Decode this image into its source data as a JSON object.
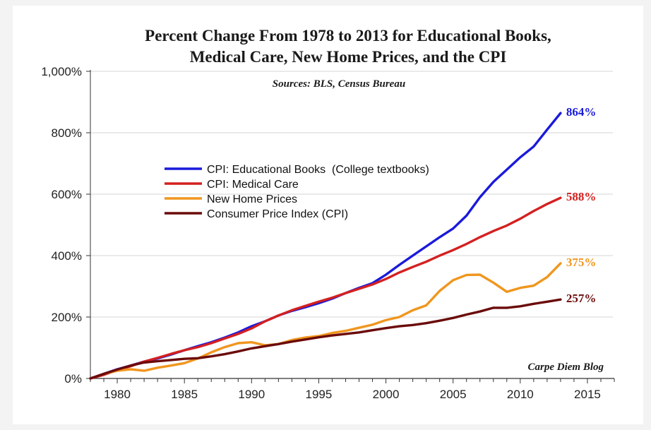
{
  "chart_data": {
    "type": "line",
    "title": [
      "Percent Change From 1978 to 2013 for Educational Books,",
      "Medical Care, New Home Prices, and the CPI"
    ],
    "subtitle": "Sources: BLS, Census Bureau",
    "credit": "Carpe Diem Blog",
    "xlabel": "",
    "ylabel": "",
    "xlim": [
      1978,
      2017
    ],
    "ylim": [
      0,
      1000
    ],
    "x_ticks": [
      1980,
      1985,
      1990,
      1995,
      2000,
      2005,
      2010,
      2015
    ],
    "y_ticks": [
      0,
      200,
      400,
      600,
      800,
      1000
    ],
    "y_tick_labels": [
      "0%",
      "200%",
      "400%",
      "600%",
      "800%",
      "1,000%"
    ],
    "grid": "horizontal",
    "legend_position": "upper-left",
    "series": [
      {
        "name": "CPI: Educational Books  (College textbooks)",
        "color": "#1a1adc",
        "end_label": "864%",
        "x": [
          1978,
          1979,
          1980,
          1981,
          1982,
          1983,
          1984,
          1985,
          1986,
          1987,
          1988,
          1989,
          1990,
          1991,
          1992,
          1993,
          1994,
          1995,
          1996,
          1997,
          1998,
          1999,
          2000,
          2001,
          2002,
          2003,
          2004,
          2005,
          2006,
          2007,
          2008,
          2009,
          2010,
          2011,
          2012,
          2013
        ],
        "values": [
          0,
          15,
          30,
          42,
          55,
          65,
          78,
          92,
          105,
          118,
          133,
          150,
          170,
          186,
          205,
          220,
          232,
          245,
          260,
          278,
          295,
          310,
          338,
          370,
          400,
          430,
          460,
          488,
          530,
          590,
          640,
          680,
          720,
          755,
          810,
          864
        ]
      },
      {
        "name": "CPI: Medical Care",
        "color": "#d42020",
        "end_label": "588%",
        "x": [
          1978,
          1979,
          1980,
          1981,
          1982,
          1983,
          1984,
          1985,
          1986,
          1987,
          1988,
          1989,
          1990,
          1991,
          1992,
          1993,
          1994,
          1995,
          1996,
          1997,
          1998,
          1999,
          2000,
          2001,
          2002,
          2003,
          2004,
          2005,
          2006,
          2007,
          2008,
          2009,
          2010,
          2011,
          2012,
          2013
        ],
        "values": [
          0,
          12,
          27,
          40,
          55,
          67,
          80,
          92,
          102,
          115,
          130,
          145,
          163,
          186,
          205,
          222,
          236,
          250,
          263,
          278,
          292,
          306,
          324,
          345,
          363,
          380,
          400,
          418,
          438,
          460,
          480,
          498,
          520,
          545,
          568,
          588
        ]
      },
      {
        "name": "New Home Prices",
        "color": "#f0961e",
        "end_label": "375%",
        "x": [
          1978,
          1979,
          1980,
          1981,
          1982,
          1983,
          1984,
          1985,
          1986,
          1987,
          1988,
          1989,
          1990,
          1991,
          1992,
          1993,
          1994,
          1995,
          1996,
          1997,
          1998,
          1999,
          2000,
          2001,
          2002,
          2003,
          2004,
          2005,
          2006,
          2007,
          2008,
          2009,
          2010,
          2011,
          2012,
          2013
        ],
        "values": [
          0,
          15,
          25,
          30,
          25,
          35,
          42,
          50,
          65,
          85,
          102,
          115,
          118,
          108,
          112,
          125,
          133,
          138,
          148,
          155,
          165,
          175,
          190,
          200,
          222,
          238,
          285,
          320,
          337,
          338,
          312,
          282,
          295,
          302,
          330,
          375
        ]
      },
      {
        "name": "Consumer Price Index (CPI)",
        "color": "#6b0a0a",
        "end_label": "257%",
        "x": [
          1978,
          1979,
          1980,
          1981,
          1982,
          1983,
          1984,
          1985,
          1986,
          1987,
          1988,
          1989,
          1990,
          1991,
          1992,
          1993,
          1994,
          1995,
          1996,
          1997,
          1998,
          1999,
          2000,
          2001,
          2002,
          2003,
          2004,
          2005,
          2006,
          2007,
          2008,
          2009,
          2010,
          2011,
          2012,
          2013
        ],
        "values": [
          0,
          15,
          29,
          42,
          52,
          56,
          60,
          64,
          66,
          72,
          79,
          88,
          98,
          105,
          112,
          120,
          127,
          134,
          140,
          145,
          150,
          157,
          164,
          170,
          174,
          180,
          188,
          197,
          208,
          218,
          230,
          230,
          235,
          243,
          250,
          257
        ]
      }
    ]
  }
}
